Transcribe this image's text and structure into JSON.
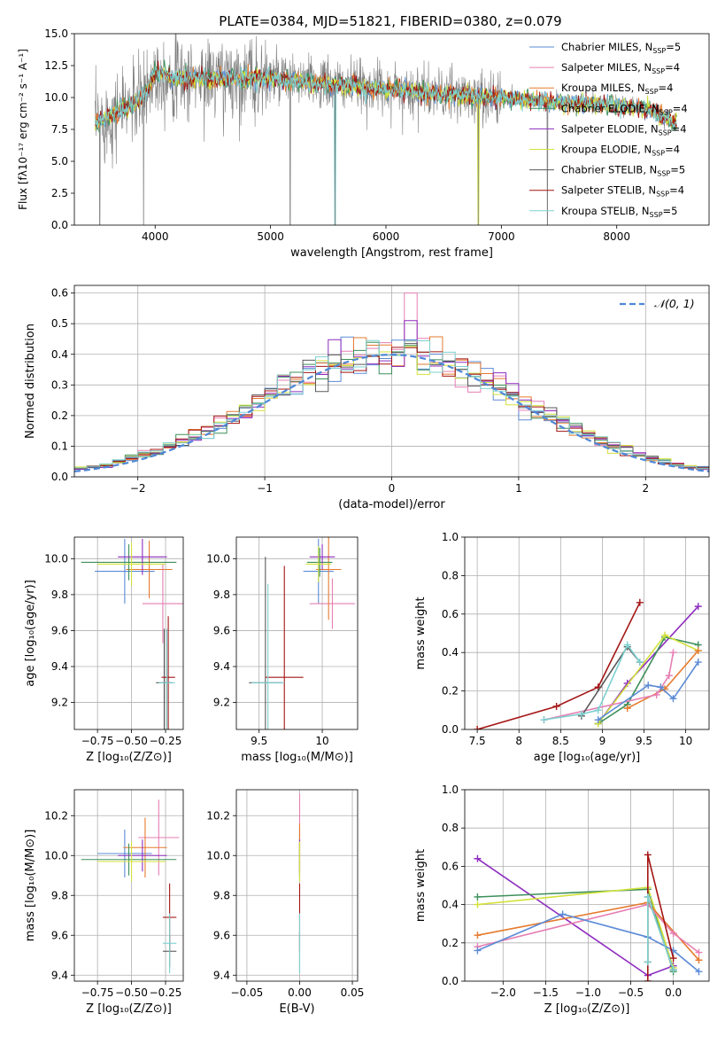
{
  "title": "PLATE=0384, MJD=51821, FIBERID=0380, z=0.079",
  "colors": {
    "chab_miles": "#5b8bd6",
    "salp_miles": "#e67fb3",
    "krou_miles": "#e67a2e",
    "chab_elodie": "#3d8f5a",
    "salp_elodie": "#8e2dbf",
    "krou_elodie": "#d3e23b",
    "chab_stelib": "#5a5a5a",
    "salp_stelib": "#a41414",
    "krou_stelib": "#7dd0d0",
    "gauss": "#4e88d8"
  },
  "legend1": [
    {
      "name": "Chabrier MILES, N",
      "sub": "SSP",
      "val": "=5",
      "ckey": "chab_miles"
    },
    {
      "name": "Salpeter MILES, N",
      "sub": "SSP",
      "val": "=4",
      "ckey": "salp_miles"
    },
    {
      "name": "Kroupa MILES, N",
      "sub": "SSP",
      "val": "=4",
      "ckey": "krou_miles"
    },
    {
      "name": "Chabrier ELODIE, N",
      "sub": "SSP",
      "val": "=4",
      "ckey": "chab_elodie"
    },
    {
      "name": "Salpeter ELODIE, N",
      "sub": "SSP",
      "val": "=4",
      "ckey": "salp_elodie"
    },
    {
      "name": "Kroupa ELODIE, N",
      "sub": "SSP",
      "val": "=4",
      "ckey": "krou_elodie"
    },
    {
      "name": "Chabrier STELIB, N",
      "sub": "SSP",
      "val": "=5",
      "ckey": "chab_stelib"
    },
    {
      "name": "Salpeter STELIB, N",
      "sub": "SSP",
      "val": "=4",
      "ckey": "salp_stelib"
    },
    {
      "name": "Kroupa STELIB, N",
      "sub": "SSP",
      "val": "=5",
      "ckey": "krou_stelib"
    }
  ],
  "legend2": "𝒩(0, 1)",
  "chart_data": [
    {
      "id": "spectrum",
      "type": "line",
      "title": "PLATE=0384, MJD=51821, FIBERID=0380, z=0.079",
      "xlabel": "wavelength [Angstrom, rest frame]",
      "ylabel": "Flux [fλ10⁻¹⁷ erg cm⁻² s⁻¹ A⁻¹]",
      "xlim": [
        3300,
        8800
      ],
      "ylim": [
        0,
        15
      ],
      "xticks": [
        4000,
        5000,
        6000,
        7000,
        8000
      ],
      "yticks": [
        0.0,
        2.5,
        5.0,
        7.5,
        10.0,
        12.5,
        15.0
      ],
      "xrange_data": [
        3480,
        8520
      ],
      "continuum": [
        [
          3500,
          8.0
        ],
        [
          3700,
          9.0
        ],
        [
          3900,
          10.0
        ],
        [
          4000,
          12.0
        ],
        [
          4200,
          11.5
        ],
        [
          4500,
          11.5
        ],
        [
          5000,
          11.5
        ],
        [
          5500,
          11.0
        ],
        [
          6000,
          10.7
        ],
        [
          6500,
          10.2
        ],
        [
          7000,
          10.0
        ],
        [
          7500,
          9.6
        ],
        [
          8000,
          9.4
        ],
        [
          8300,
          9.0
        ],
        [
          8500,
          8.0
        ]
      ],
      "spikes_down": [
        [
          3520,
          0
        ],
        [
          3900,
          0
        ],
        [
          5170,
          0
        ],
        [
          5560,
          0
        ],
        [
          6800,
          0
        ],
        [
          7400,
          0
        ]
      ]
    },
    {
      "id": "residuals",
      "type": "bar",
      "xlabel": "(data-model)/error",
      "ylabel": "Normed distribution",
      "xlim": [
        -2.5,
        2.5
      ],
      "ylim": [
        0,
        0.625
      ],
      "xticks": [
        -2,
        -1,
        0,
        1,
        2
      ],
      "yticks": [
        0.0,
        0.1,
        0.2,
        0.3,
        0.4,
        0.5,
        0.6
      ],
      "bin_width": 0.1,
      "peak_values": {
        "salp_elodie": 0.51,
        "salp_miles": 0.6,
        "others": 0.45
      },
      "gaussian_sigma": 1.0
    },
    {
      "id": "age_vs_Z",
      "type": "scatter",
      "xlabel": "Z [log₁₀(Z/Z⊙)]",
      "ylabel": "age  [log₁₀(age/yr)]",
      "xlim": [
        -0.92,
        -0.12
      ],
      "ylim": [
        9.05,
        10.12
      ],
      "xticks": [
        -0.75,
        -0.5,
        -0.25
      ],
      "xticklabels": [
        "−0.75",
        "−0.50",
        "−0.25"
      ],
      "yticks": [
        9.2,
        9.4,
        9.6,
        9.8,
        10.0
      ],
      "points": [
        {
          "ckey": "chab_miles",
          "x": -0.55,
          "y": 9.93,
          "xerr": 0.22,
          "yerr": 0.18
        },
        {
          "ckey": "salp_miles",
          "x": -0.27,
          "y": 9.75,
          "xerr": 0.15,
          "yerr": 0.22
        },
        {
          "ckey": "krou_miles",
          "x": -0.37,
          "y": 9.94,
          "xerr": 0.17,
          "yerr": 0.16
        },
        {
          "ckey": "chab_elodie",
          "x": -0.52,
          "y": 9.98,
          "xerr": 0.35,
          "yerr": 0.1
        },
        {
          "ckey": "salp_elodie",
          "x": -0.42,
          "y": 10.01,
          "xerr": 0.18,
          "yerr": 0.1
        },
        {
          "ckey": "krou_elodie",
          "x": -0.5,
          "y": 9.97,
          "xerr": 0.25,
          "yerr": 0.12
        },
        {
          "ckey": "chab_stelib",
          "x": -0.26,
          "y": 9.31,
          "xerr": 0.06,
          "yerr": 0.3
        },
        {
          "ckey": "salp_stelib",
          "x": -0.23,
          "y": 9.34,
          "xerr": 0.05,
          "yerr": 0.34
        },
        {
          "ckey": "krou_stelib",
          "x": -0.24,
          "y": 9.31,
          "xerr": 0.06,
          "yerr": 0.3
        }
      ]
    },
    {
      "id": "age_vs_mass",
      "type": "scatter",
      "xlabel": "mass [log₁₀(M/M⊙)]",
      "ylabel": "",
      "xlim": [
        9.32,
        10.28
      ],
      "ylim": [
        9.05,
        10.12
      ],
      "xticks": [
        9.5,
        10.0
      ],
      "yticks": [
        9.2,
        9.4,
        9.6,
        9.8,
        10.0
      ],
      "points": [
        {
          "ckey": "chab_miles",
          "x": 9.97,
          "y": 9.93,
          "xerr": 0.12,
          "yerr": 0.18
        },
        {
          "ckey": "salp_miles",
          "x": 10.08,
          "y": 9.75,
          "xerr": 0.18,
          "yerr": 0.14
        },
        {
          "ckey": "krou_miles",
          "x": 10.05,
          "y": 9.94,
          "xerr": 0.1,
          "yerr": 0.28
        },
        {
          "ckey": "chab_elodie",
          "x": 9.98,
          "y": 9.98,
          "xerr": 0.1,
          "yerr": 0.08
        },
        {
          "ckey": "salp_elodie",
          "x": 10.0,
          "y": 10.01,
          "xerr": 0.1,
          "yerr": 0.07
        },
        {
          "ckey": "krou_elodie",
          "x": 9.97,
          "y": 9.97,
          "xerr": 0.1,
          "yerr": 0.1
        },
        {
          "ckey": "chab_stelib",
          "x": 9.55,
          "y": 9.31,
          "xerr": 0.13,
          "yerr": 0.7
        },
        {
          "ckey": "salp_stelib",
          "x": 9.7,
          "y": 9.34,
          "xerr": 0.15,
          "yerr": 0.62
        },
        {
          "ckey": "krou_stelib",
          "x": 9.57,
          "y": 9.31,
          "xerr": 0.13,
          "yerr": 0.55
        }
      ]
    },
    {
      "id": "weight_vs_age",
      "type": "line",
      "xlabel": "age  [log₁₀(age/yr)]",
      "ylabel": "mass weight",
      "xlim": [
        7.35,
        10.28
      ],
      "ylim": [
        0,
        1.0
      ],
      "xticks": [
        7.5,
        8.0,
        8.5,
        9.0,
        9.5,
        10.0
      ],
      "yticks": [
        0.0,
        0.2,
        0.4,
        0.6,
        0.8,
        1.0
      ],
      "series": [
        {
          "ckey": "salp_stelib",
          "x": [
            7.5,
            8.45,
            8.95,
            9.45
          ],
          "y": [
            0.0,
            0.12,
            0.22,
            0.66
          ]
        },
        {
          "ckey": "salp_elodie",
          "x": [
            8.95,
            9.3,
            10.15
          ],
          "y": [
            0.03,
            0.24,
            0.64
          ]
        },
        {
          "ckey": "chab_elodie",
          "x": [
            8.95,
            9.3,
            9.75,
            10.15
          ],
          "y": [
            0.03,
            0.13,
            0.48,
            0.44
          ]
        },
        {
          "ckey": "krou_elodie",
          "x": [
            8.95,
            9.75,
            10.15
          ],
          "y": [
            0.03,
            0.49,
            0.41
          ]
        },
        {
          "ckey": "krou_miles",
          "x": [
            9.3,
            9.75,
            10.15
          ],
          "y": [
            0.11,
            0.21,
            0.41
          ]
        },
        {
          "ckey": "salp_miles",
          "x": [
            8.3,
            9.65,
            9.8,
            9.85
          ],
          "y": [
            0.05,
            0.18,
            0.28,
            0.4
          ]
        },
        {
          "ckey": "chab_miles",
          "x": [
            8.95,
            9.55,
            9.7,
            9.85,
            10.15
          ],
          "y": [
            0.05,
            0.23,
            0.22,
            0.16,
            0.35
          ]
        },
        {
          "ckey": "chab_stelib",
          "x": [
            8.75,
            9.3,
            9.45
          ],
          "y": [
            0.07,
            0.43,
            0.35
          ]
        },
        {
          "ckey": "krou_stelib",
          "x": [
            8.3,
            8.75,
            8.95,
            9.3,
            9.45
          ],
          "y": [
            0.05,
            0.08,
            0.1,
            0.44,
            0.35
          ]
        }
      ]
    },
    {
      "id": "mass_vs_Z",
      "type": "scatter",
      "xlabel": "Z [log₁₀(Z/Z⊙)]",
      "ylabel": "mass [log₁₀(M/M⊙)]",
      "xlim": [
        -0.92,
        -0.12
      ],
      "ylim": [
        9.37,
        10.33
      ],
      "xticks": [
        -0.75,
        -0.5,
        -0.25
      ],
      "xticklabels": [
        "−0.75",
        "−0.50",
        "−0.25"
      ],
      "yticks": [
        9.4,
        9.6,
        9.8,
        10.0,
        10.2
      ],
      "points": [
        {
          "ckey": "chab_miles",
          "x": -0.55,
          "y": 10.01,
          "xerr": 0.2,
          "yerr": 0.12
        },
        {
          "ckey": "salp_miles",
          "x": -0.3,
          "y": 10.09,
          "xerr": 0.15,
          "yerr": 0.19
        },
        {
          "ckey": "krou_miles",
          "x": -0.4,
          "y": 10.04,
          "xerr": 0.16,
          "yerr": 0.15
        },
        {
          "ckey": "chab_elodie",
          "x": -0.52,
          "y": 9.98,
          "xerr": 0.35,
          "yerr": 0.08
        },
        {
          "ckey": "salp_elodie",
          "x": -0.42,
          "y": 10.0,
          "xerr": 0.18,
          "yerr": 0.08
        },
        {
          "ckey": "krou_elodie",
          "x": -0.5,
          "y": 9.97,
          "xerr": 0.25,
          "yerr": 0.1
        },
        {
          "ckey": "chab_stelib",
          "x": -0.22,
          "y": 9.52,
          "xerr": 0.05,
          "yerr": 0.08
        },
        {
          "ckey": "salp_stelib",
          "x": -0.22,
          "y": 9.69,
          "xerr": 0.05,
          "yerr": 0.17
        },
        {
          "ckey": "krou_stelib",
          "x": -0.22,
          "y": 9.56,
          "xerr": 0.05,
          "yerr": 0.15
        }
      ]
    },
    {
      "id": "mass_vs_ebv",
      "type": "scatter",
      "xlabel": "E(B-V)",
      "ylabel": "",
      "xlim": [
        -0.06,
        0.055
      ],
      "ylim": [
        9.37,
        10.33
      ],
      "xticks": [
        -0.05,
        0.0,
        0.05
      ],
      "xticklabels": [
        "−0.05",
        "0.00",
        "0.05"
      ],
      "yticks": [
        9.4,
        9.6,
        9.8,
        10.0,
        10.2
      ],
      "points": [
        {
          "ckey": "chab_miles",
          "x": 0.0,
          "y": 10.01,
          "xerr": 0.0,
          "yerr": 0.12
        },
        {
          "ckey": "salp_miles",
          "x": 0.0,
          "y": 10.09,
          "xerr": 0.0,
          "yerr": 0.22
        },
        {
          "ckey": "krou_miles",
          "x": 0.0,
          "y": 10.04,
          "xerr": 0.0,
          "yerr": 0.12
        },
        {
          "ckey": "chab_elodie",
          "x": 0.0,
          "y": 9.98,
          "xerr": 0.0,
          "yerr": 0.08
        },
        {
          "ckey": "salp_elodie",
          "x": 0.0,
          "y": 10.0,
          "xerr": 0.0,
          "yerr": 0.08
        },
        {
          "ckey": "krou_elodie",
          "x": 0.0,
          "y": 9.97,
          "xerr": 0.0,
          "yerr": 0.1
        },
        {
          "ckey": "chab_stelib",
          "x": 0.0,
          "y": 9.52,
          "xerr": 0.0,
          "yerr": 0.1
        },
        {
          "ckey": "salp_stelib",
          "x": 0.0,
          "y": 9.69,
          "xerr": 0.0,
          "yerr": 0.17
        },
        {
          "ckey": "krou_stelib",
          "x": 0.0,
          "y": 9.56,
          "xerr": 0.0,
          "yerr": 0.15
        }
      ]
    },
    {
      "id": "weight_vs_Z",
      "type": "line",
      "xlabel": "Z [log₁₀(Z/Z⊙)]",
      "ylabel": "mass weight",
      "xlim": [
        -2.45,
        0.42
      ],
      "ylim": [
        0,
        1.0
      ],
      "xticks": [
        -2.0,
        -1.5,
        -1.0,
        -0.5,
        0.0
      ],
      "xticklabels": [
        "−2.0",
        "−1.5",
        "−1.0",
        "−0.5",
        "0.0"
      ],
      "yticks": [
        0.0,
        0.2,
        0.4,
        0.6,
        0.8,
        1.0
      ],
      "series": [
        {
          "ckey": "salp_elodie",
          "x": [
            -2.3,
            -0.3,
            0.0
          ],
          "y": [
            0.64,
            0.03,
            0.08
          ]
        },
        {
          "ckey": "chab_elodie",
          "x": [
            -2.3,
            -0.3,
            0.0
          ],
          "y": [
            0.44,
            0.48,
            0.05
          ]
        },
        {
          "ckey": "krou_elodie",
          "x": [
            -2.3,
            -0.3,
            0.0
          ],
          "y": [
            0.4,
            0.49,
            0.07
          ]
        },
        {
          "ckey": "krou_miles",
          "x": [
            -2.3,
            -0.3,
            0.3
          ],
          "y": [
            0.24,
            0.41,
            0.11
          ]
        },
        {
          "ckey": "salp_miles",
          "x": [
            -2.3,
            -0.3,
            0.0,
            0.3
          ],
          "y": [
            0.18,
            0.4,
            0.25,
            0.15
          ]
        },
        {
          "ckey": "chab_miles",
          "x": [
            -2.3,
            -1.3,
            -0.3,
            0.0,
            0.3
          ],
          "y": [
            0.16,
            0.35,
            0.23,
            0.16,
            0.05
          ]
        },
        {
          "ckey": "salp_stelib",
          "x": [
            -0.3,
            -0.3,
            0.0
          ],
          "y": [
            0.0,
            0.66,
            0.12
          ]
        },
        {
          "ckey": "chab_stelib",
          "x": [
            -0.3,
            -0.3,
            0.0
          ],
          "y": [
            0.1,
            0.44,
            0.06
          ]
        },
        {
          "ckey": "krou_stelib",
          "x": [
            -0.3,
            -0.3,
            0.0
          ],
          "y": [
            0.1,
            0.44,
            0.06
          ]
        }
      ]
    }
  ]
}
